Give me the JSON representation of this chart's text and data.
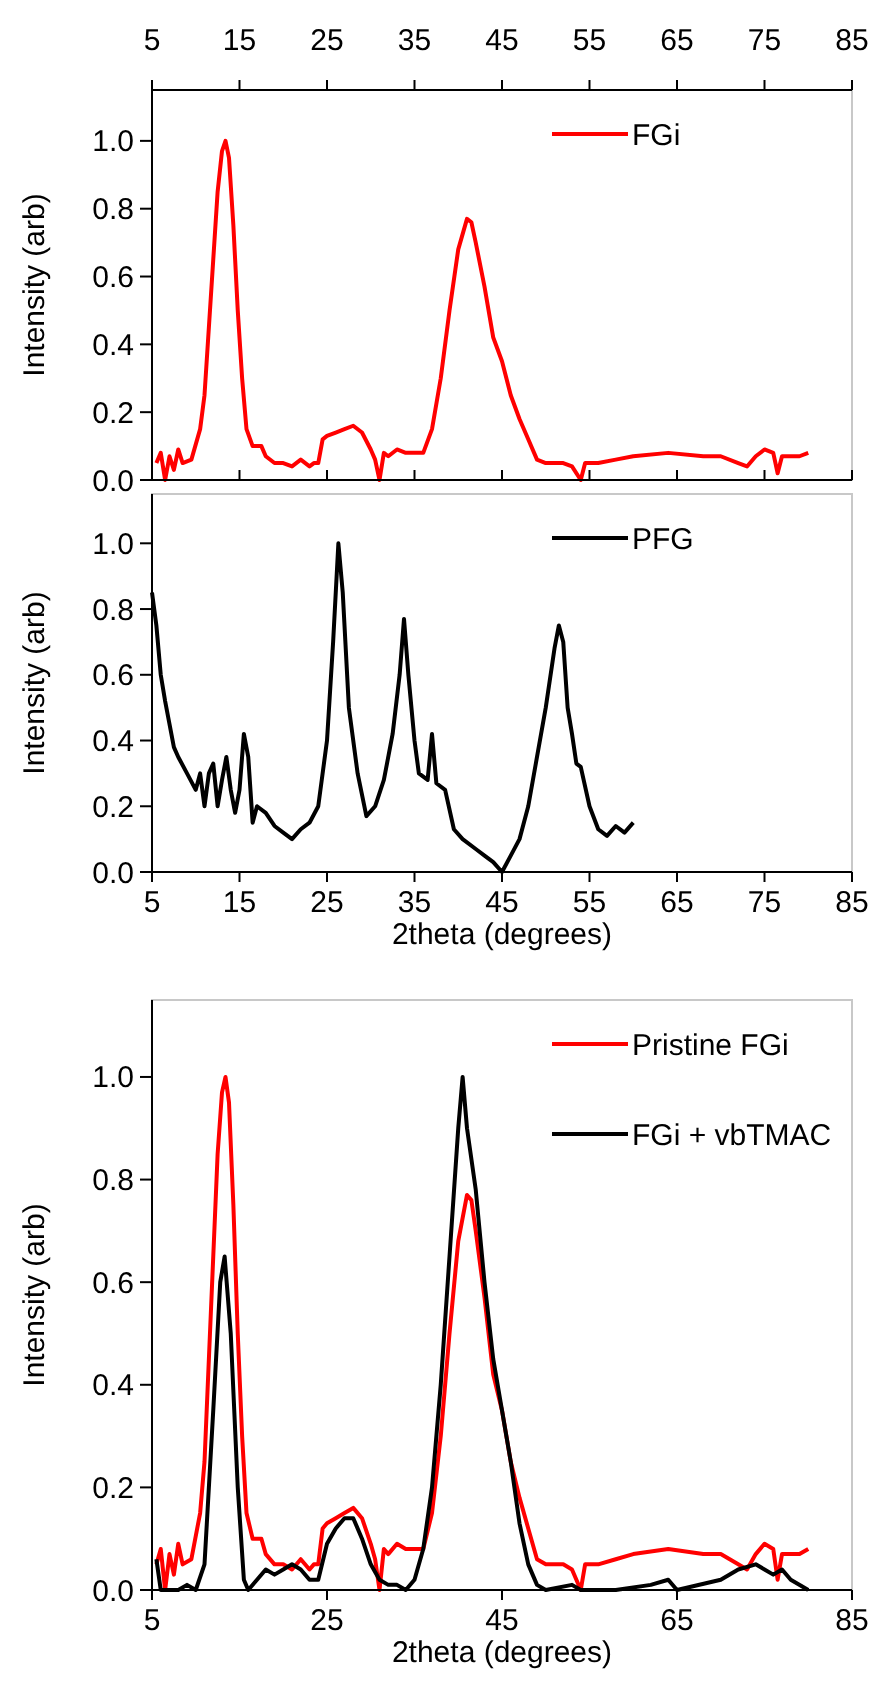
{
  "chart_data": [
    {
      "type": "line",
      "ylabel": "Intensity (arb)",
      "xlim": [
        5,
        85
      ],
      "xticks": [
        5,
        15,
        25,
        35,
        45,
        55,
        65,
        75,
        85
      ],
      "ylim": [
        0,
        1.15
      ],
      "yticks": [
        {
          "value": 0,
          "label": "0.0"
        },
        {
          "value": 0.2,
          "label": "0.2"
        },
        {
          "value": 0.4,
          "label": "0.4"
        },
        {
          "value": 0.6,
          "label": "0.6"
        },
        {
          "value": 0.8,
          "label": "0.8"
        },
        {
          "value": 1,
          "label": "1.0"
        }
      ],
      "legend": "top right",
      "grid": false,
      "series": [
        {
          "name": "FGi",
          "color": "#ff0000",
          "x": [
            5.5,
            6,
            6.5,
            7,
            7.5,
            8,
            8.5,
            9.5,
            10.5,
            11,
            11.5,
            12,
            12.5,
            13,
            13.4,
            13.8,
            14.3,
            14.8,
            15.3,
            15.8,
            16.5,
            17.5,
            18,
            19,
            20,
            21,
            22,
            23,
            23.5,
            24,
            24.5,
            25,
            26,
            27,
            28,
            29,
            30,
            30.5,
            31,
            31.5,
            32,
            33,
            34,
            35,
            36,
            37,
            38,
            39,
            40,
            41,
            41.5,
            42,
            43,
            44,
            45,
            46,
            47,
            48,
            49,
            50,
            52,
            53,
            54,
            54.5,
            56,
            58,
            60,
            64,
            68,
            70,
            72,
            73,
            74,
            75,
            76,
            76.5,
            77,
            79,
            80
          ],
          "values": [
            0.05,
            0.08,
            0.0,
            0.07,
            0.03,
            0.09,
            0.05,
            0.06,
            0.15,
            0.25,
            0.45,
            0.65,
            0.85,
            0.97,
            1.0,
            0.95,
            0.75,
            0.5,
            0.3,
            0.15,
            0.1,
            0.1,
            0.07,
            0.05,
            0.05,
            0.04,
            0.06,
            0.04,
            0.05,
            0.05,
            0.12,
            0.13,
            0.14,
            0.15,
            0.16,
            0.14,
            0.09,
            0.06,
            0.0,
            0.08,
            0.07,
            0.09,
            0.08,
            0.08,
            0.08,
            0.15,
            0.3,
            0.5,
            0.68,
            0.77,
            0.76,
            0.7,
            0.57,
            0.42,
            0.35,
            0.25,
            0.18,
            0.12,
            0.06,
            0.05,
            0.05,
            0.04,
            0.0,
            0.05,
            0.05,
            0.06,
            0.07,
            0.08,
            0.07,
            0.07,
            0.05,
            0.04,
            0.07,
            0.09,
            0.08,
            0.02,
            0.07,
            0.07,
            0.08
          ]
        }
      ]
    },
    {
      "type": "line",
      "xlabel": "2theta (degrees)",
      "ylabel": "Intensity (arb)",
      "xlim": [
        5,
        85
      ],
      "xticks": [
        5,
        15,
        25,
        35,
        45,
        55,
        65,
        75,
        85
      ],
      "ylim": [
        0,
        1.15
      ],
      "yticks": [
        {
          "value": 0,
          "label": "0.0"
        },
        {
          "value": 0.2,
          "label": "0.2"
        },
        {
          "value": 0.4,
          "label": "0.4"
        },
        {
          "value": 0.6,
          "label": "0.6"
        },
        {
          "value": 0.8,
          "label": "0.8"
        },
        {
          "value": 1,
          "label": "1.0"
        }
      ],
      "legend": "top right",
      "grid": false,
      "series": [
        {
          "name": "PFG",
          "color": "#000000",
          "x": [
            5,
            5.5,
            6,
            6.5,
            7,
            7.5,
            8,
            9,
            10,
            10.5,
            11,
            11.5,
            12,
            12.5,
            13,
            13.5,
            14,
            14.5,
            15,
            15.5,
            16,
            16.5,
            17,
            18,
            19,
            20,
            21,
            22,
            23,
            24,
            25,
            25.7,
            26.3,
            26.8,
            27.5,
            28.5,
            29.5,
            30.5,
            31.5,
            32.5,
            33.3,
            33.8,
            34.3,
            35,
            35.5,
            36.5,
            37,
            37.5,
            38.5,
            39.5,
            40.5,
            42,
            43,
            44,
            45,
            46,
            47,
            48,
            49,
            50,
            51,
            51.5,
            52,
            52.5,
            53,
            53.5,
            54,
            55,
            56,
            57,
            58,
            59,
            60
          ],
          "values": [
            0.85,
            0.75,
            0.6,
            0.52,
            0.45,
            0.38,
            0.35,
            0.3,
            0.25,
            0.3,
            0.2,
            0.3,
            0.33,
            0.2,
            0.28,
            0.35,
            0.25,
            0.18,
            0.25,
            0.42,
            0.35,
            0.15,
            0.2,
            0.18,
            0.14,
            0.12,
            0.1,
            0.13,
            0.15,
            0.2,
            0.4,
            0.7,
            1.0,
            0.85,
            0.5,
            0.3,
            0.17,
            0.2,
            0.28,
            0.42,
            0.6,
            0.77,
            0.6,
            0.4,
            0.3,
            0.28,
            0.42,
            0.27,
            0.25,
            0.13,
            0.1,
            0.07,
            0.05,
            0.03,
            0.0,
            0.05,
            0.1,
            0.2,
            0.35,
            0.5,
            0.68,
            0.75,
            0.7,
            0.5,
            0.42,
            0.33,
            0.32,
            0.2,
            0.13,
            0.11,
            0.14,
            0.12,
            0.15
          ]
        }
      ]
    },
    {
      "type": "line",
      "xlabel": "2theta (degrees)",
      "ylabel": "Intensity (arb)",
      "xlim": [
        5,
        85
      ],
      "xticks": [
        5,
        25,
        45,
        65,
        85
      ],
      "ylim": [
        0,
        1.15
      ],
      "yticks": [
        {
          "value": 0,
          "label": "0.0"
        },
        {
          "value": 0.2,
          "label": "0.2"
        },
        {
          "value": 0.4,
          "label": "0.4"
        },
        {
          "value": 0.6,
          "label": "0.6"
        },
        {
          "value": 0.8,
          "label": "0.8"
        },
        {
          "value": 1,
          "label": "1.0"
        }
      ],
      "legend": "top right",
      "grid": false,
      "series": [
        {
          "name": "Pristine FGi",
          "color": "#ff0000",
          "x": [
            5.5,
            6,
            6.5,
            7,
            7.5,
            8,
            8.5,
            9.5,
            10.5,
            11,
            11.5,
            12,
            12.5,
            13,
            13.4,
            13.8,
            14.3,
            14.8,
            15.3,
            15.8,
            16.5,
            17.5,
            18,
            19,
            20,
            21,
            22,
            23,
            23.5,
            24,
            24.5,
            25,
            26,
            27,
            28,
            29,
            30,
            30.5,
            31,
            31.5,
            32,
            33,
            34,
            35,
            36,
            37,
            38,
            39,
            40,
            41,
            41.5,
            42,
            43,
            44,
            45,
            46,
            47,
            48,
            49,
            50,
            52,
            53,
            54,
            54.5,
            56,
            58,
            60,
            64,
            68,
            70,
            72,
            73,
            74,
            75,
            76,
            76.5,
            77,
            79,
            80
          ],
          "values": [
            0.05,
            0.08,
            0.0,
            0.07,
            0.03,
            0.09,
            0.05,
            0.06,
            0.15,
            0.25,
            0.45,
            0.65,
            0.85,
            0.97,
            1.0,
            0.95,
            0.75,
            0.5,
            0.3,
            0.15,
            0.1,
            0.1,
            0.07,
            0.05,
            0.05,
            0.04,
            0.06,
            0.04,
            0.05,
            0.05,
            0.12,
            0.13,
            0.14,
            0.15,
            0.16,
            0.14,
            0.09,
            0.06,
            0.0,
            0.08,
            0.07,
            0.09,
            0.08,
            0.08,
            0.08,
            0.15,
            0.3,
            0.5,
            0.68,
            0.77,
            0.76,
            0.7,
            0.57,
            0.42,
            0.35,
            0.25,
            0.18,
            0.12,
            0.06,
            0.05,
            0.05,
            0.04,
            0.0,
            0.05,
            0.05,
            0.06,
            0.07,
            0.08,
            0.07,
            0.07,
            0.05,
            0.04,
            0.07,
            0.09,
            0.08,
            0.02,
            0.07,
            0.07,
            0.08
          ]
        },
        {
          "name": "FGi + vbTMAC",
          "color": "#000000",
          "x": [
            5.5,
            6,
            8,
            9,
            10,
            11,
            12,
            12.8,
            13.3,
            14,
            14.8,
            15.5,
            16,
            17,
            18,
            19,
            20,
            21,
            22,
            23,
            24,
            25,
            26,
            27,
            28,
            29,
            30,
            31,
            32,
            33,
            34,
            35,
            36,
            37,
            38,
            39,
            40,
            40.5,
            41,
            42,
            43,
            44,
            45,
            46,
            47,
            48,
            49,
            50,
            53,
            54,
            58,
            62,
            64,
            65,
            70,
            72,
            74,
            75,
            76,
            77,
            78,
            80
          ],
          "values": [
            0.06,
            0.0,
            0.0,
            0.01,
            0.0,
            0.05,
            0.35,
            0.6,
            0.65,
            0.5,
            0.2,
            0.02,
            0.0,
            0.02,
            0.04,
            0.03,
            0.04,
            0.05,
            0.04,
            0.02,
            0.02,
            0.09,
            0.12,
            0.14,
            0.14,
            0.1,
            0.05,
            0.02,
            0.01,
            0.01,
            0.0,
            0.02,
            0.08,
            0.2,
            0.4,
            0.65,
            0.9,
            1.0,
            0.9,
            0.78,
            0.6,
            0.45,
            0.35,
            0.25,
            0.13,
            0.05,
            0.01,
            0.0,
            0.01,
            0.0,
            0.0,
            0.01,
            0.02,
            0.0,
            0.02,
            0.04,
            0.05,
            0.04,
            0.03,
            0.04,
            0.02,
            0.0
          ]
        }
      ]
    }
  ]
}
